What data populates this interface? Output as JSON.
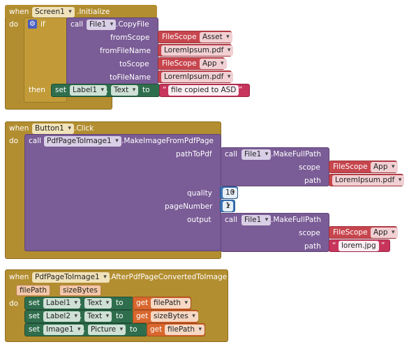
{
  "block1": {
    "when": "when",
    "component": "Screen1",
    "event": ".Initialize",
    "do": "do",
    "if": "if",
    "then": "then",
    "call": "call",
    "file_component": "File1",
    "method": ".CopyFile",
    "params": [
      "fromScope",
      "fromFileName",
      "toScope",
      "toFileName"
    ],
    "from_scope_type": "FileScope",
    "from_scope_value": "Asset",
    "from_file": "LoremIpsum.pdf",
    "to_scope_type": "FileScope",
    "to_scope_value": "App",
    "to_file": "LoremIpsum.pdf",
    "set": "set",
    "label": "Label1",
    "property": "Text",
    "to": "to",
    "message": "file copied to ASD"
  },
  "block2": {
    "when": "when",
    "component": "Button1",
    "event": ".Click",
    "do": "do",
    "call": "call",
    "pdf_component": "PdfPageToImage1",
    "method": ".MakeImageFromPdfPage",
    "params": [
      "pathToPdf",
      "quality",
      "pageNumber",
      "output"
    ],
    "file_component": "File1",
    "full_path_method": ".MakeFullPath",
    "scope": "scope",
    "path": "path",
    "scope_type": "FileScope",
    "scope_value": "App",
    "pdf_file": "LoremIpsum.pdf",
    "quality": "10",
    "page_number": "1",
    "output_file": "lorem.jpg"
  },
  "block3": {
    "when": "when",
    "component": "PdfPageToImage1",
    "event": ".AfterPdfPageConvertedToImage",
    "param1": "filePath",
    "param2": "sizeBytes",
    "do": "do",
    "set": "set",
    "to": "to",
    "get": "get",
    "rows": [
      {
        "component": "Label1",
        "property": "Text",
        "value": "filePath"
      },
      {
        "component": "Label2",
        "property": "Text",
        "value": "sizeBytes"
      },
      {
        "component": "Image1",
        "property": "Picture",
        "value": "filePath"
      }
    ]
  },
  "icons": {
    "mutator": "gear-icon",
    "dropdown": "chevron-down-icon"
  },
  "colors": {
    "event": "#b38e30",
    "component_call": "#7a5c96",
    "scope": "#c7464e",
    "setter": "#2f6e4d",
    "getter": "#d8672e",
    "number": "#3c74b5",
    "text": "#c7345c"
  }
}
